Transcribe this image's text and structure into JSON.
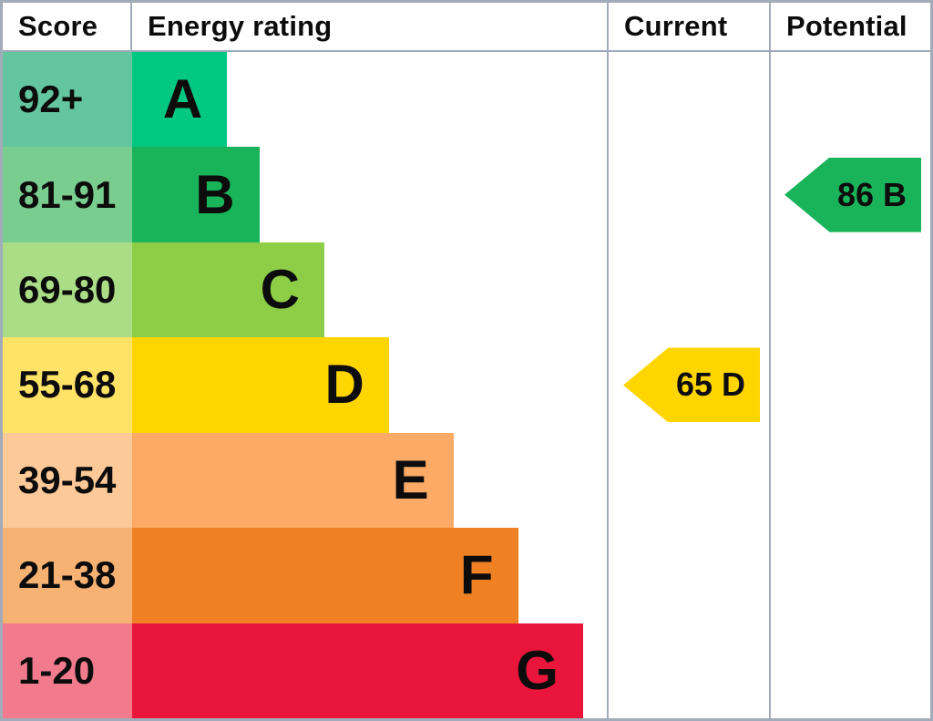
{
  "header": {
    "score": "Score",
    "energy_rating": "Energy rating",
    "current": "Current",
    "potential": "Potential"
  },
  "bands": [
    {
      "letter": "A",
      "score_range": "92+",
      "bar_color": "#00c781",
      "score_bg": "#63c6a0",
      "bar_width": "20%"
    },
    {
      "letter": "B",
      "score_range": "81-91",
      "bar_color": "#19b459",
      "score_bg": "#79cd8e",
      "bar_width": "26.8%"
    },
    {
      "letter": "C",
      "score_range": "69-80",
      "bar_color": "#8dce46",
      "score_bg": "#aadd85",
      "bar_width": "40.5%"
    },
    {
      "letter": "D",
      "score_range": "55-68",
      "bar_color": "#ffd500",
      "score_bg": "#ffe366",
      "bar_width": "54.1%"
    },
    {
      "letter": "E",
      "score_range": "39-54",
      "bar_color": "#fcaa65",
      "score_bg": "#fdc999",
      "bar_width": "67.7%"
    },
    {
      "letter": "F",
      "score_range": "21-38",
      "bar_color": "#ef8023",
      "score_bg": "#f5b273",
      "bar_width": "81.3%"
    },
    {
      "letter": "G",
      "score_range": "1-20",
      "bar_color": "#e9153b",
      "score_bg": "#f27a8d",
      "bar_width": "95%"
    }
  ],
  "current": {
    "label": "65 D",
    "value": 65,
    "band": "D",
    "color": "#ffd500"
  },
  "potential": {
    "label": "86 B",
    "value": 86,
    "band": "B",
    "color": "#19b459"
  },
  "colors": {
    "border": "#a2abb9",
    "text": "#0c0c0c",
    "background": "#ffffff"
  },
  "chart_data": {
    "type": "bar",
    "orientation": "horizontal",
    "title": "",
    "columns": [
      "Score",
      "Energy rating",
      "Current",
      "Potential"
    ],
    "categories": [
      "A",
      "B",
      "C",
      "D",
      "E",
      "F",
      "G"
    ],
    "category_score_ranges": [
      "92+",
      "81-91",
      "69-80",
      "55-68",
      "39-54",
      "21-38",
      "1-20"
    ],
    "bar_width_pct": [
      20,
      26.8,
      40.5,
      54.1,
      67.7,
      81.3,
      95
    ],
    "band_colors": [
      "#00c781",
      "#19b459",
      "#8dce46",
      "#ffd500",
      "#fcaa65",
      "#ef8023",
      "#e9153b"
    ],
    "markers": [
      {
        "name": "Current",
        "value": 65,
        "band": "D",
        "color": "#ffd500",
        "row": "D"
      },
      {
        "name": "Potential",
        "value": 86,
        "band": "B",
        "color": "#19b459",
        "row": "B"
      }
    ],
    "legend": false,
    "grid": false
  }
}
